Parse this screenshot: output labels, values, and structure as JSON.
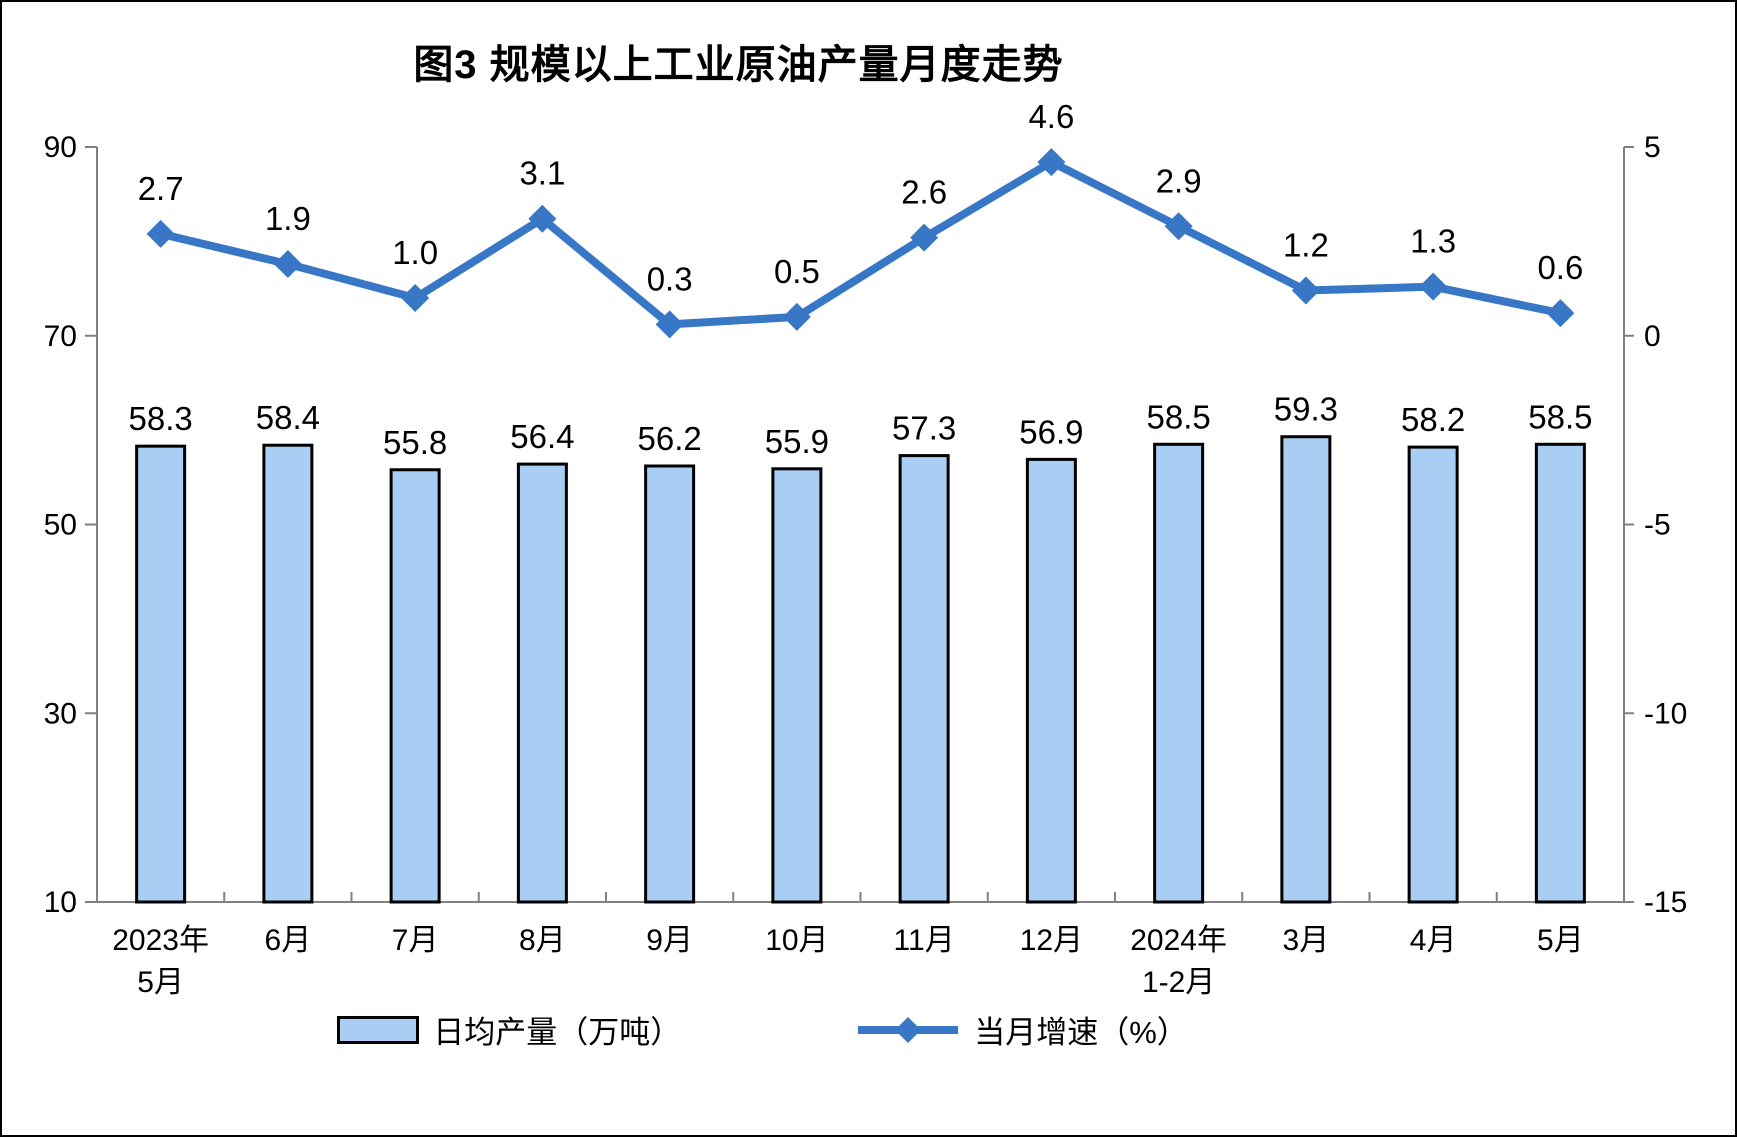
{
  "page": {
    "title": "图3 规模以上工业原油产量月度走势"
  },
  "colors": {
    "bar_fill": "#A9CEF4",
    "bar_border": "#000000",
    "line": "#3877C6",
    "axis": "#808080",
    "text": "#000000"
  },
  "legend": {
    "bar_label": "日均产量（万吨）",
    "line_label": "当月增速（%）"
  },
  "chart_data": {
    "type": "bar",
    "subtype": "bar-line-combo",
    "title": "图3 规模以上工业原油产量月度走势",
    "categories": [
      "2023年\n5月",
      "6月",
      "7月",
      "8月",
      "9月",
      "10月",
      "11月",
      "12月",
      "2024年\n1-2月",
      "3月",
      "4月",
      "5月"
    ],
    "series": [
      {
        "name": "日均产量（万吨）",
        "type": "bar",
        "axis": "left",
        "values": [
          58.3,
          58.4,
          55.8,
          56.4,
          56.2,
          55.9,
          57.3,
          56.9,
          58.5,
          59.3,
          58.2,
          58.5
        ]
      },
      {
        "name": "当月增速（%）",
        "type": "line",
        "axis": "right",
        "values": [
          2.7,
          1.9,
          1.0,
          3.1,
          0.3,
          0.5,
          2.6,
          4.6,
          2.9,
          1.2,
          1.3,
          0.6
        ]
      }
    ],
    "left_axis": {
      "min": 10,
      "max": 90,
      "ticks": [
        90,
        70,
        50,
        30,
        10
      ]
    },
    "right_axis": {
      "min": -15,
      "max": 5,
      "ticks": [
        5,
        0,
        -5,
        -10,
        -15
      ]
    },
    "grid": false,
    "legend_position": "bottom",
    "data_labels": true
  }
}
